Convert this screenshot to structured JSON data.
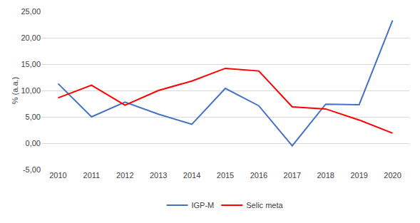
{
  "chart_data": {
    "type": "line",
    "y_label": "% (a.a.)",
    "categories": [
      "2010",
      "2011",
      "2012",
      "2013",
      "2014",
      "2015",
      "2016",
      "2017",
      "2018",
      "2019",
      "2020"
    ],
    "series": [
      {
        "name": "IGP-M",
        "color": "#4472c4",
        "values": [
          11.3,
          5.0,
          7.8,
          5.5,
          3.6,
          10.4,
          7.1,
          -0.5,
          7.4,
          7.3,
          23.3
        ]
      },
      {
        "name": "Selic meta",
        "color": "#ff0000",
        "values": [
          8.6,
          11.0,
          7.2,
          10.0,
          11.8,
          14.2,
          13.7,
          6.9,
          6.5,
          4.4,
          1.9
        ]
      }
    ],
    "ylim": [
      -5,
      25
    ],
    "yticks": [
      {
        "value": -5,
        "label": "-5,00"
      },
      {
        "value": 0,
        "label": "0,00"
      },
      {
        "value": 5,
        "label": "5,00"
      },
      {
        "value": 10,
        "label": "10,00"
      },
      {
        "value": 15,
        "label": "15,00"
      },
      {
        "value": 20,
        "label": "20,00"
      },
      {
        "value": 25,
        "label": "25,00"
      }
    ],
    "grid": true,
    "legend": "bottom"
  }
}
